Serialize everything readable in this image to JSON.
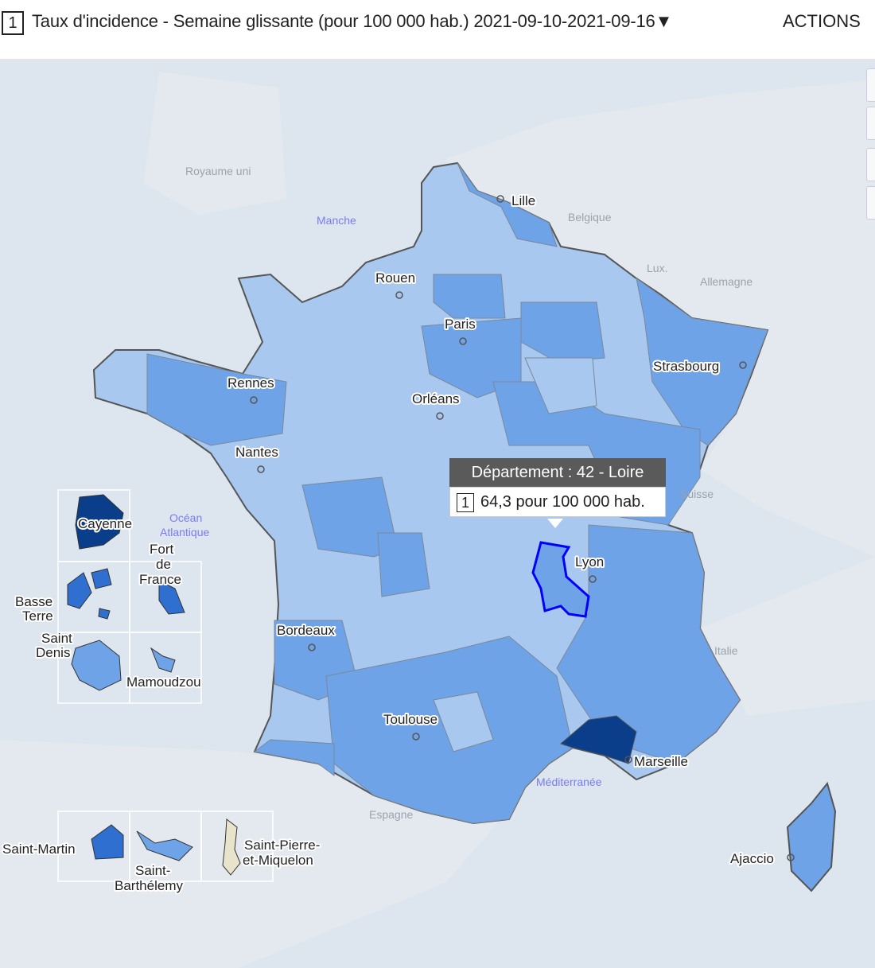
{
  "header": {
    "number_badge": "1",
    "title": "Taux d'incidence - Semaine glissante (pour 100 000 hab.)  2021-09-10-2021-09-16▼",
    "actions_label": "ACTIONS"
  },
  "colors": {
    "sea": "#dde5ee",
    "level_low": "#a8c8f0",
    "level_mid": "#6fa3e8",
    "level_high": "#2e6fd0",
    "level_very_high": "#0a3d8a",
    "no_data": "#e8e4cc",
    "selected_outline": "#0000ff"
  },
  "cities": [
    "Lille",
    "Rouen",
    "Paris",
    "Strasbourg",
    "Rennes",
    "Orléans",
    "Nantes",
    "Lyon",
    "Bordeaux",
    "Toulouse",
    "Marseille",
    "Ajaccio",
    "Cayenne",
    "Fort de France",
    "Basse Terre",
    "Saint Denis",
    "Mamoudzou",
    "Saint-Martin",
    "Saint-Barthélemy",
    "Saint-Pierre-et-Miquelon"
  ],
  "city_lines": {
    "fort": [
      "Fort",
      "de",
      "France"
    ],
    "basse": [
      "Basse",
      "Terre"
    ],
    "denis": [
      "Saint",
      "Denis"
    ],
    "barth": [
      "Saint-",
      "Barthélemy"
    ],
    "spm": [
      "Saint-Pierre-",
      "et-Miquelon"
    ]
  },
  "seas": [
    "Manche",
    "Océan",
    "Atlantique",
    "Méditerranée"
  ],
  "countries": [
    "Royaume uni",
    "Belgique",
    "Lux.",
    "Allemagne",
    "Suisse",
    "Italie",
    "Espagne"
  ],
  "tooltip": {
    "title": "Département : 42 - Loire",
    "number_badge": "1",
    "value": "64,3 pour 100 000 hab."
  }
}
